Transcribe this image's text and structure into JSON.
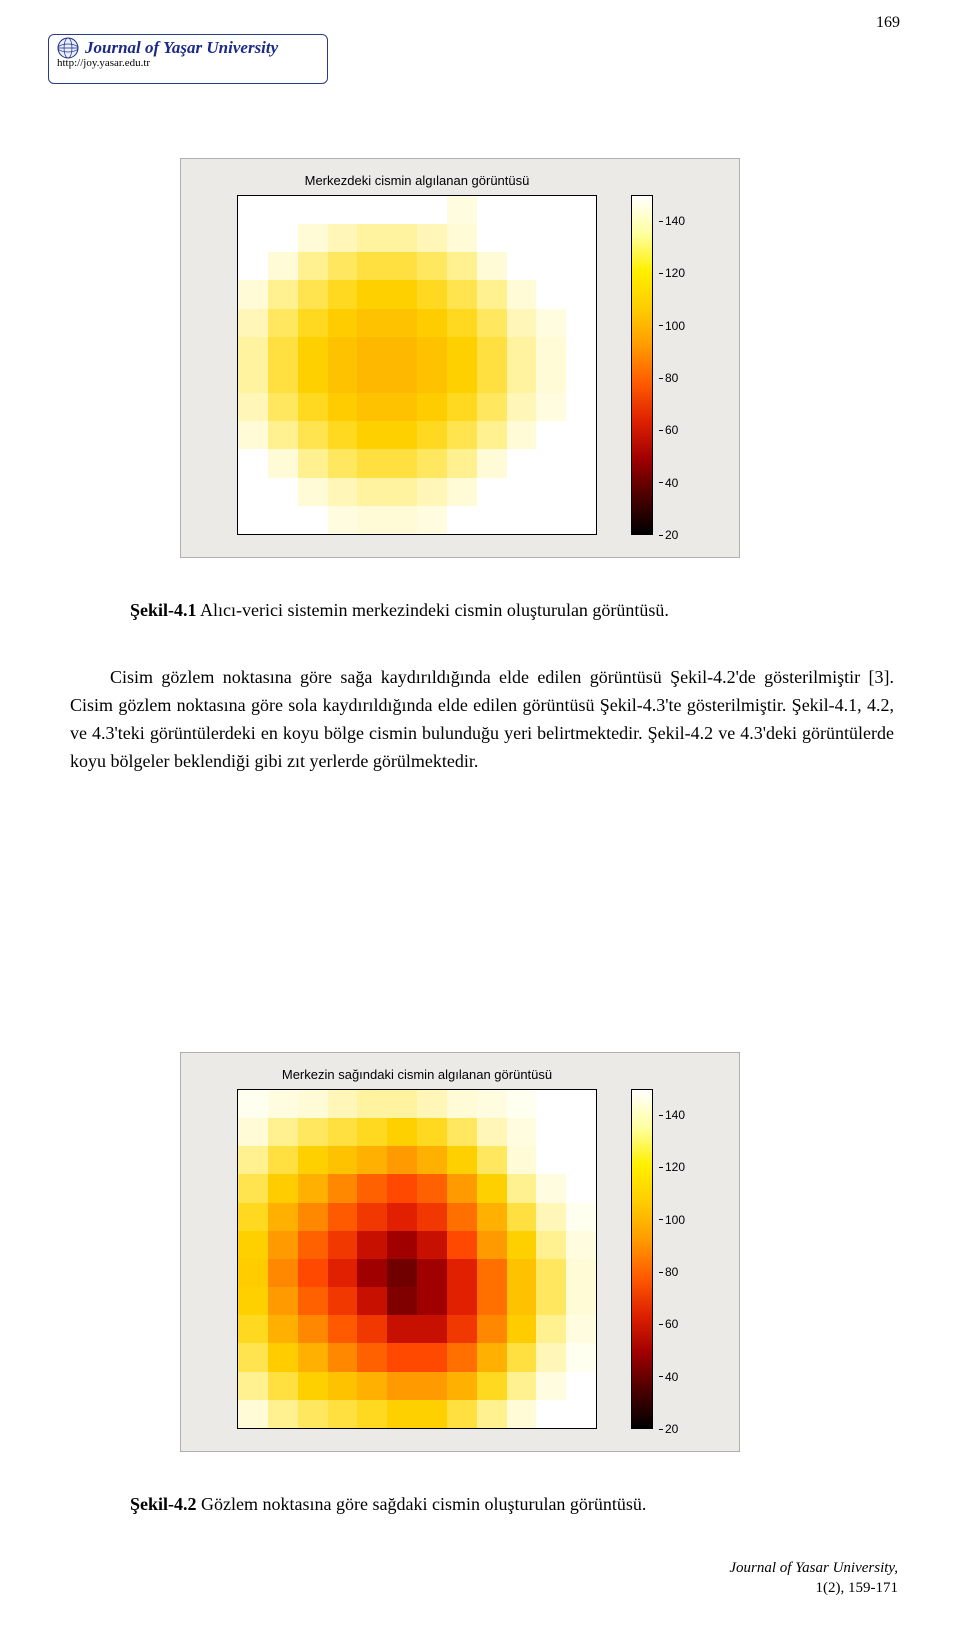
{
  "page_number": "169",
  "logo": {
    "title": "Journal of Yaşar University",
    "url": "http://joy.yasar.edu.tr"
  },
  "figure1": {
    "title": "Merkezdeki cismin algılanan görüntüsü",
    "type": "heatmap",
    "grid_rows": 12,
    "grid_cols": 12,
    "background_color": "#eceae6",
    "plot_bg": "#ffffff",
    "cbar_min": 20,
    "cbar_max": 150,
    "cbar_ticks": [
      20,
      40,
      60,
      80,
      100,
      120,
      140
    ],
    "cbar_gradient": [
      "#000000",
      "#4a0000",
      "#a00000",
      "#dd2000",
      "#ff5a00",
      "#ff9a00",
      "#ffcc00",
      "#fff000",
      "#ffffa0",
      "#ffffff"
    ],
    "cells": [
      [
        "#ffffff",
        "#ffffff",
        "#ffffff",
        "#ffffff",
        "#ffffff",
        "#ffffff",
        "#ffffff",
        "#fffce0",
        "#ffffff",
        "#ffffff",
        "#ffffff",
        "#ffffff"
      ],
      [
        "#ffffff",
        "#ffffff",
        "#fffbd6",
        "#fff6b8",
        "#fff3a0",
        "#fff3a0",
        "#fff6b8",
        "#fffbd6",
        "#ffffff",
        "#ffffff",
        "#ffffff",
        "#ffffff"
      ],
      [
        "#ffffff",
        "#fffbd6",
        "#fff090",
        "#ffe860",
        "#ffe040",
        "#ffe040",
        "#ffe860",
        "#fff090",
        "#fffbd6",
        "#ffffff",
        "#ffffff",
        "#ffffff"
      ],
      [
        "#fffbd6",
        "#fff090",
        "#ffe450",
        "#ffd820",
        "#ffd000",
        "#ffd000",
        "#ffd820",
        "#ffe450",
        "#fff090",
        "#fffbd6",
        "#ffffff",
        "#ffffff"
      ],
      [
        "#fff6b8",
        "#ffe860",
        "#ffd820",
        "#ffcc00",
        "#ffc200",
        "#ffc200",
        "#ffcc00",
        "#ffd820",
        "#ffe860",
        "#fff6b8",
        "#fffce0",
        "#ffffff"
      ],
      [
        "#fff3a0",
        "#ffe040",
        "#ffd000",
        "#ffc200",
        "#ffb800",
        "#ffb800",
        "#ffc200",
        "#ffd000",
        "#ffe040",
        "#fff3a0",
        "#fffbd6",
        "#ffffff"
      ],
      [
        "#fff3a0",
        "#ffe040",
        "#ffd000",
        "#ffc200",
        "#ffb800",
        "#ffb800",
        "#ffc200",
        "#ffd000",
        "#ffe040",
        "#fff3a0",
        "#fffbd6",
        "#ffffff"
      ],
      [
        "#fff6b8",
        "#ffe860",
        "#ffd820",
        "#ffcc00",
        "#ffc200",
        "#ffc200",
        "#ffcc00",
        "#ffd820",
        "#ffe860",
        "#fff6b8",
        "#fffce0",
        "#ffffff"
      ],
      [
        "#fffbd6",
        "#fff090",
        "#ffe450",
        "#ffd820",
        "#ffd000",
        "#ffd000",
        "#ffd820",
        "#ffe450",
        "#fff090",
        "#fffbd6",
        "#ffffff",
        "#ffffff"
      ],
      [
        "#ffffff",
        "#fffbd6",
        "#fff090",
        "#ffe860",
        "#ffe040",
        "#ffe040",
        "#ffe860",
        "#fff090",
        "#fffbd6",
        "#ffffff",
        "#ffffff",
        "#ffffff"
      ],
      [
        "#ffffff",
        "#ffffff",
        "#fffbd6",
        "#fff6b8",
        "#fff3a0",
        "#fff3a0",
        "#fff6b8",
        "#fffbd6",
        "#ffffff",
        "#ffffff",
        "#ffffff",
        "#ffffff"
      ],
      [
        "#ffffff",
        "#ffffff",
        "#ffffff",
        "#fffce0",
        "#fffbd6",
        "#fffbd6",
        "#fffce0",
        "#ffffff",
        "#ffffff",
        "#ffffff",
        "#ffffff",
        "#ffffff"
      ]
    ]
  },
  "caption1": {
    "label": "Şekil-4.1",
    "text": " Alıcı-verici sistemin merkezindeki cismin oluşturulan görüntüsü."
  },
  "body_text": "Cisim gözlem noktasına göre sağa kaydırıldığında elde edilen görüntüsü Şekil-4.2'de gösterilmiştir [3]. Cisim gözlem noktasına göre sola kaydırıldığında elde edilen görüntüsü Şekil-4.3'te gösterilmiştir. Şekil-4.1, 4.2, ve 4.3'teki görüntülerdeki en koyu bölge cismin bulunduğu yeri belirtmektedir. Şekil-4.2 ve 4.3'deki görüntülerde koyu bölgeler beklendiği gibi zıt yerlerde görülmektedir.",
  "figure2": {
    "title": "Merkezin sağındaki cismin algılanan görüntüsü",
    "type": "heatmap",
    "grid_rows": 12,
    "grid_cols": 12,
    "background_color": "#eceae6",
    "plot_bg": "#ffffff",
    "cbar_min": 20,
    "cbar_max": 150,
    "cbar_ticks": [
      20,
      40,
      60,
      80,
      100,
      120,
      140
    ],
    "cbar_gradient": [
      "#000000",
      "#4a0000",
      "#a00000",
      "#dd2000",
      "#ff5a00",
      "#ff9a00",
      "#ffcc00",
      "#fff000",
      "#ffffa0",
      "#ffffff"
    ],
    "cells": [
      [
        "#fffff0",
        "#fffce0",
        "#fffbd6",
        "#fff6b8",
        "#fff3a0",
        "#fff3a0",
        "#fff6b8",
        "#fffbd6",
        "#fffce0",
        "#fffff0",
        "#ffffff",
        "#ffffff"
      ],
      [
        "#fffbd6",
        "#fff090",
        "#ffe860",
        "#ffe040",
        "#ffd820",
        "#ffd000",
        "#ffd820",
        "#ffe860",
        "#fff6b8",
        "#fffce0",
        "#ffffff",
        "#ffffff"
      ],
      [
        "#fff090",
        "#ffe040",
        "#ffd000",
        "#ffc200",
        "#ffb000",
        "#ff9a00",
        "#ffb000",
        "#ffd000",
        "#ffe860",
        "#fffbd6",
        "#ffffff",
        "#ffffff"
      ],
      [
        "#ffe450",
        "#ffcc00",
        "#ffb000",
        "#ff8800",
        "#ff6000",
        "#ff4800",
        "#ff6000",
        "#ff9a00",
        "#ffd000",
        "#fff090",
        "#fffce0",
        "#ffffff"
      ],
      [
        "#ffd820",
        "#ffb000",
        "#ff8800",
        "#ff5a00",
        "#f03800",
        "#e02000",
        "#f03800",
        "#ff7000",
        "#ffb000",
        "#ffe040",
        "#fff6b8",
        "#fffff0"
      ],
      [
        "#ffd000",
        "#ff9a00",
        "#ff6000",
        "#f03800",
        "#c81000",
        "#a00000",
        "#c81000",
        "#ff4800",
        "#ff9a00",
        "#ffd000",
        "#fff090",
        "#fffce0"
      ],
      [
        "#ffcc00",
        "#ff8800",
        "#ff4800",
        "#e02000",
        "#a00000",
        "#700000",
        "#a00000",
        "#e02000",
        "#ff7000",
        "#ffc200",
        "#ffe860",
        "#fffbd6"
      ],
      [
        "#ffd000",
        "#ff9a00",
        "#ff6000",
        "#f03800",
        "#c81000",
        "#800000",
        "#a00000",
        "#e02000",
        "#ff7000",
        "#ffc200",
        "#ffe860",
        "#fffbd6"
      ],
      [
        "#ffd820",
        "#ffb000",
        "#ff8800",
        "#ff5a00",
        "#f03800",
        "#c81000",
        "#c81000",
        "#f03800",
        "#ff8800",
        "#ffcc00",
        "#fff090",
        "#fffce0"
      ],
      [
        "#ffe450",
        "#ffcc00",
        "#ffb000",
        "#ff8800",
        "#ff6000",
        "#ff4800",
        "#ff4800",
        "#ff7000",
        "#ffb000",
        "#ffe040",
        "#fff6b8",
        "#fffff0"
      ],
      [
        "#fff090",
        "#ffe040",
        "#ffd000",
        "#ffc200",
        "#ffb000",
        "#ff9a00",
        "#ff9a00",
        "#ffb000",
        "#ffd820",
        "#fff090",
        "#fffce0",
        "#ffffff"
      ],
      [
        "#fffbd6",
        "#fff090",
        "#ffe860",
        "#ffe040",
        "#ffd820",
        "#ffd000",
        "#ffd000",
        "#ffe040",
        "#fff090",
        "#fffbd6",
        "#ffffff",
        "#ffffff"
      ]
    ]
  },
  "caption2": {
    "label": "Şekil-4.2",
    "text": " Gözlem noktasına göre sağdaki cismin oluşturulan görüntüsü."
  },
  "footer": {
    "journal": "Journal of Yasar University,",
    "issue": "1(2), 159-171"
  }
}
